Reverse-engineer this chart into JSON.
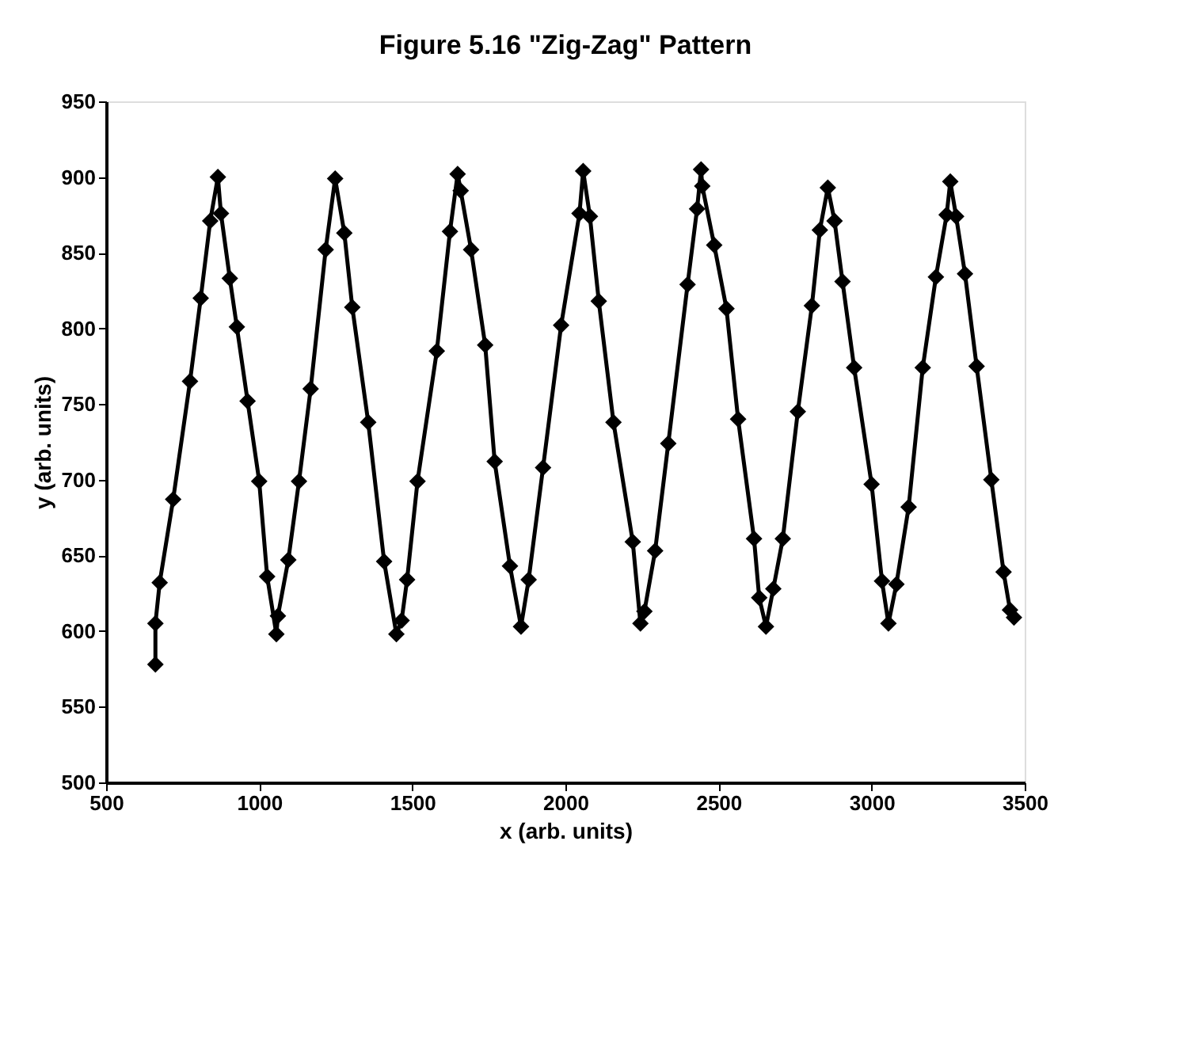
{
  "chart_data": {
    "type": "line",
    "title": "Figure 5.16 \"Zig-Zag\" Pattern",
    "xlabel": "x (arb. units)",
    "ylabel": "y (arb. units)",
    "xlim": [
      500,
      3500
    ],
    "xticks": [
      500,
      1000,
      1500,
      2000,
      2500,
      3000,
      3500
    ],
    "ylim": [
      500,
      950
    ],
    "yticks": [
      500,
      550,
      600,
      650,
      700,
      750,
      800,
      850,
      900,
      950
    ],
    "grid": false,
    "marker": "diamond",
    "line_style": "solid",
    "series": [
      {
        "color": "#000000",
        "x": [
          661,
          661,
          675,
          719,
          774,
          809,
          840,
          865,
          875,
          904,
          927,
          962,
          1000,
          1026,
          1056,
          1061,
          1095,
          1130,
          1168,
          1217,
          1248,
          1278,
          1304,
          1356,
          1408,
          1448,
          1465,
          1483,
          1517,
          1580,
          1623,
          1648,
          1658,
          1692,
          1738,
          1769,
          1819,
          1855,
          1880,
          1927,
          1986,
          2046,
          2058,
          2080,
          2109,
          2157,
          2220,
          2245,
          2258,
          2293,
          2336,
          2399,
          2430,
          2443,
          2447,
          2486,
          2526,
          2564,
          2616,
          2633,
          2655,
          2679,
          2710,
          2759,
          2805,
          2831,
          2857,
          2879,
          2905,
          2943,
          3000,
          3034,
          3055,
          3081,
          3121,
          3167,
          3210,
          3245,
          3257,
          3276,
          3305,
          3343,
          3391,
          3431,
          3452,
          3465
        ],
        "values": [
          578,
          605,
          632,
          687,
          765,
          820,
          871,
          900,
          876,
          833,
          801,
          752,
          699,
          636,
          598,
          610,
          647,
          699,
          760,
          852,
          899,
          863,
          814,
          738,
          646,
          598,
          607,
          634,
          699,
          785,
          864,
          902,
          891,
          852,
          789,
          712,
          643,
          603,
          634,
          708,
          802,
          876,
          904,
          874,
          818,
          738,
          659,
          605,
          613,
          653,
          724,
          829,
          879,
          905,
          894,
          855,
          813,
          740,
          661,
          622,
          603,
          628,
          661,
          745,
          815,
          865,
          893,
          871,
          831,
          774,
          697,
          633,
          605,
          631,
          682,
          774,
          834,
          875,
          897,
          874,
          836,
          775,
          700,
          639,
          614,
          609
        ]
      }
    ]
  }
}
